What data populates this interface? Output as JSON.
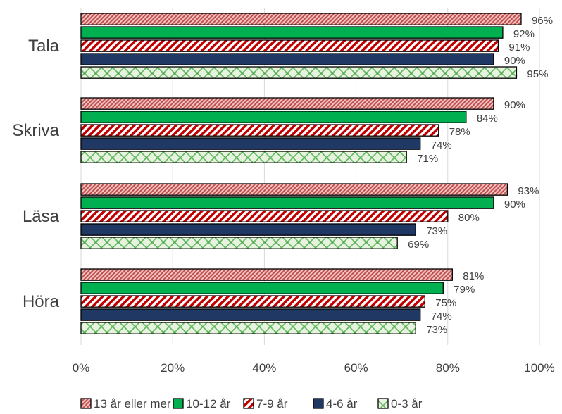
{
  "chart_data": {
    "type": "bar",
    "orientation": "horizontal",
    "categories": [
      "Tala",
      "Skriva",
      "Läsa",
      "Höra"
    ],
    "series": [
      {
        "name": "13 år eller mer",
        "values": [
          96,
          90,
          93,
          81
        ],
        "labels": [
          "96%",
          "90%",
          "93%",
          "81%"
        ],
        "color": "#c0504d",
        "pattern": "diagonal-dense-pink"
      },
      {
        "name": "10-12 år",
        "values": [
          92,
          84,
          90,
          79
        ],
        "labels": [
          "92%",
          "84%",
          "90%",
          "79%"
        ],
        "color": "#00b050",
        "pattern": "solid"
      },
      {
        "name": "7-9 år",
        "values": [
          91,
          78,
          80,
          75
        ],
        "labels": [
          "91%",
          "78%",
          "80%",
          "75%"
        ],
        "color": "#c00000",
        "pattern": "diagonal-wide-red"
      },
      {
        "name": "4-6 år",
        "values": [
          90,
          74,
          73,
          74
        ],
        "labels": [
          "90%",
          "74%",
          "73%",
          "74%"
        ],
        "color": "#1f3864",
        "pattern": "solid"
      },
      {
        "name": "0-3 år",
        "values": [
          95,
          71,
          69,
          73
        ],
        "labels": [
          "95%",
          "71%",
          "69%",
          "73%"
        ],
        "color": "#92d050",
        "pattern": "lattice-light-green"
      }
    ],
    "xlim": [
      0,
      100
    ],
    "ticks": [
      "0%",
      "20%",
      "40%",
      "60%",
      "80%",
      "100%"
    ],
    "grid": "vertical",
    "legend": "bottom"
  }
}
